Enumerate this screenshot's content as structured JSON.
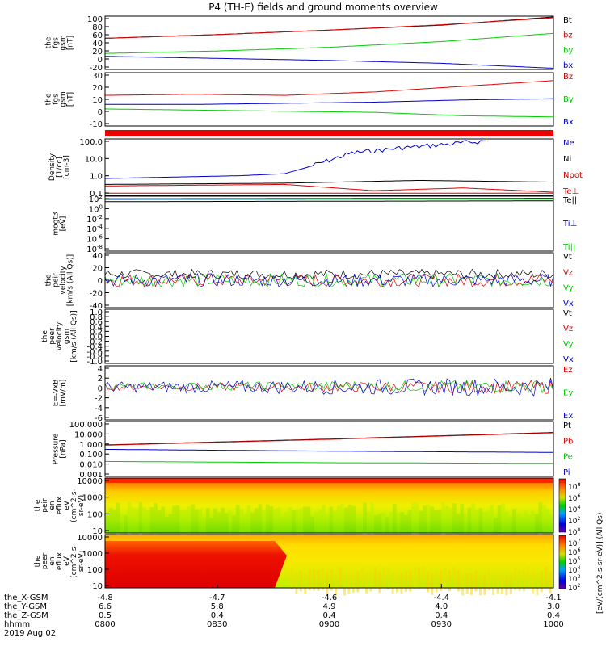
{
  "title": "P4 (TH-E) fields and ground moments overview",
  "colors": {
    "black": "#000000",
    "red": "#dd0000",
    "green": "#00cc00",
    "blue": "#0000cc"
  },
  "footer": {
    "row_labels": [
      "the_X-GSM",
      "the_Y-GSM",
      "the_Z-GSM",
      "hhmm",
      "2019 Aug 02"
    ],
    "columns": [
      {
        "x": "-4.8",
        "y": "6.6",
        "z": "0.5",
        "hhmm": "0800"
      },
      {
        "x": "-4.7",
        "y": "5.8",
        "z": "0.4",
        "hhmm": "0830"
      },
      {
        "x": "-4.6",
        "y": "4.9",
        "z": "0.4",
        "hhmm": "0900"
      },
      {
        "x": "-4.4",
        "y": "4.0",
        "z": "0.4",
        "hhmm": "0930"
      },
      {
        "x": "-4.1",
        "y": "3.0",
        "z": "0.4",
        "hhmm": "1000"
      }
    ]
  },
  "colorbar": {
    "label": "[eV/(cm^2-s-sr-eV)] (All Qs)",
    "ticks_top": [
      "10^8",
      "10^6",
      "10^4",
      "10^2",
      "10^0"
    ],
    "ticks_bottom": [
      "10^7",
      "10^6",
      "10^5",
      "10^4",
      "10^3",
      "10^2"
    ]
  },
  "chart_data": [
    {
      "type": "line",
      "ylabel_lines": [
        "the",
        "fgs",
        "gsm",
        "[nT]"
      ],
      "yticks": [
        "100",
        "80",
        "60",
        "40",
        "20",
        "0",
        "-20"
      ],
      "ylim": [
        -30,
        100
      ],
      "series": [
        {
          "name": "Bt",
          "color": "black",
          "x": [
            0,
            0.25,
            0.5,
            0.75,
            1
          ],
          "y": [
            46,
            55,
            66,
            78,
            98
          ]
        },
        {
          "name": "bz",
          "color": "red",
          "x": [
            0,
            0.25,
            0.5,
            0.75,
            1
          ],
          "y": [
            46,
            55,
            66,
            79,
            96
          ]
        },
        {
          "name": "by",
          "color": "green",
          "x": [
            0,
            0.25,
            0.5,
            0.75,
            1
          ],
          "y": [
            9,
            15,
            24,
            38,
            58
          ]
        },
        {
          "name": "bx",
          "color": "blue",
          "x": [
            0,
            0.25,
            0.5,
            0.75,
            1
          ],
          "y": [
            2,
            -3,
            -8,
            -15,
            -27
          ]
        }
      ]
    },
    {
      "type": "line",
      "ylabel_lines": [
        "the",
        "fgs",
        "gsm",
        "[nT]"
      ],
      "yticks": [
        "30",
        "20",
        "10",
        "0",
        "-10"
      ],
      "ylim": [
        -17,
        30
      ],
      "series": [
        {
          "name": "Bz",
          "color": "red",
          "x": [
            0,
            0.2,
            0.4,
            0.6,
            0.8,
            1
          ],
          "y": [
            10,
            11,
            10,
            13,
            18,
            23
          ]
        },
        {
          "name": "By",
          "color": "green",
          "x": [
            0,
            0.2,
            0.4,
            0.6,
            0.8,
            1
          ],
          "y": [
            -2,
            -3,
            -4,
            -5,
            -8,
            -9
          ]
        },
        {
          "name": "Bx",
          "color": "blue",
          "x": [
            0,
            0.2,
            0.4,
            0.6,
            0.8,
            1
          ],
          "y": [
            2,
            2,
            3,
            4,
            6,
            7
          ]
        }
      ]
    },
    {
      "type": "line",
      "ylabel_lines": [
        "Density",
        "[1/cc]",
        "[cm-3]"
      ],
      "yticks": [
        "100.0",
        "10.0",
        "1.0",
        "0.1"
      ],
      "ylim": [
        0.05,
        200
      ],
      "log": true,
      "series": [
        {
          "name": "Ne",
          "color": "blue",
          "x": [
            0,
            0.3,
            0.4,
            0.45,
            0.55,
            0.65,
            0.78,
            0.85
          ],
          "y": [
            0.6,
            0.9,
            1.2,
            3.0,
            25,
            50,
            100,
            150
          ]
        },
        {
          "name": "Ni",
          "color": "black",
          "x": [
            0,
            0.4,
            0.7,
            1
          ],
          "y": [
            0.25,
            0.3,
            0.45,
            0.35
          ]
        },
        {
          "name": "Npot",
          "color": "red",
          "x": [
            0,
            0.4,
            0.6,
            0.8,
            1
          ],
          "y": [
            0.2,
            0.25,
            0.1,
            0.15,
            0.08
          ]
        },
        {
          "name": "Te⊥",
          "color": "red",
          "x": [
            0,
            1
          ],
          "y": [
            0.07,
            0.07
          ]
        }
      ]
    },
    {
      "type": "line",
      "ylabel_lines": [
        "mogt3",
        "[eV]"
      ],
      "yticks": [
        "10^2",
        "10^0",
        "10^-2",
        "10^-4",
        "10^-6",
        "10^-8"
      ],
      "ylim": [
        -10,
        3
      ],
      "series": [
        {
          "name": "Te||",
          "color": "black",
          "x": [
            0,
            1
          ],
          "y": [
            1.7,
            1.9
          ]
        },
        {
          "name": "Ti⊥",
          "color": "blue",
          "x": [
            0,
            1
          ],
          "y": [
            2.4,
            2.5
          ]
        },
        {
          "name": "Ti||",
          "color": "green",
          "x": [
            0,
            1
          ],
          "y": [
            2.2,
            2.3
          ]
        }
      ],
      "legend": [
        "Te||",
        "Ti⊥",
        "Ti||"
      ]
    },
    {
      "type": "line",
      "ylabel_lines": [
        "the",
        "peir",
        "velocity",
        "[km/s (All Qs)]"
      ],
      "yticks": [
        "40",
        "20",
        "0",
        "-20",
        "-40"
      ],
      "ylim": [
        -45,
        45
      ],
      "series": [
        {
          "name": "Vt",
          "color": "black",
          "x": [
            0,
            1
          ],
          "y": [
            10,
            10
          ]
        },
        {
          "name": "Vz",
          "color": "red",
          "x": [
            0,
            1
          ],
          "y": [
            0,
            0
          ]
        },
        {
          "name": "Vy",
          "color": "green",
          "x": [
            0,
            1
          ],
          "y": [
            0,
            0
          ]
        },
        {
          "name": "Vx",
          "color": "blue",
          "x": [
            0,
            1
          ],
          "y": [
            0,
            0
          ]
        }
      ]
    },
    {
      "type": "line",
      "ylabel_lines": [
        "the",
        "peer",
        "velocity",
        "gsm",
        "[km/s (All Qs)]"
      ],
      "yticks": [
        "1.0",
        "0.8",
        "0.6",
        "0.4",
        "0.2",
        "0.0",
        "-0.2",
        "-0.4",
        "-0.6",
        "-0.8",
        "-1.0"
      ],
      "ylim": [
        -1,
        1
      ],
      "series": [],
      "legend": [
        "Vt",
        "Vz",
        "Vy",
        "Vx"
      ]
    },
    {
      "type": "line",
      "ylabel_lines": [
        "E=-VxB",
        "[mV/m]"
      ],
      "yticks": [
        "4",
        "2",
        "0",
        "-2",
        "-4",
        "-6"
      ],
      "ylim": [
        -7,
        4.5
      ],
      "series": [
        {
          "name": "Ez",
          "color": "red",
          "x": [
            0,
            1
          ],
          "y": [
            0,
            0
          ]
        },
        {
          "name": "Ey",
          "color": "green",
          "x": [
            0,
            1
          ],
          "y": [
            0.2,
            0.2
          ]
        },
        {
          "name": "Ex",
          "color": "blue",
          "x": [
            0,
            1
          ],
          "y": [
            0,
            0
          ]
        }
      ]
    },
    {
      "type": "line",
      "ylabel_lines": [
        "Pressure",
        "[nPa]"
      ],
      "yticks": [
        "100.000",
        "10.000",
        "1.000",
        "0.100",
        "0.010",
        "0.001"
      ],
      "ylim": [
        0.0007,
        150
      ],
      "log": true,
      "series": [
        {
          "name": "Pt",
          "color": "black",
          "x": [
            0,
            0.5,
            1
          ],
          "y": [
            0.8,
            3,
            13
          ]
        },
        {
          "name": "Pb",
          "color": "red",
          "x": [
            0,
            0.5,
            1
          ],
          "y": [
            0.75,
            2.8,
            12
          ]
        },
        {
          "name": "Pe",
          "color": "green",
          "x": [
            0,
            0.5,
            1
          ],
          "y": [
            0.02,
            0.015,
            0.013
          ]
        },
        {
          "name": "Pi",
          "color": "blue",
          "x": [
            0,
            0.5,
            1
          ],
          "y": [
            0.3,
            0.2,
            0.15
          ]
        }
      ]
    },
    {
      "type": "heatmap",
      "ylabel_lines": [
        "the",
        "peir",
        "en",
        "eflux",
        "eV",
        "(cm^2-s-",
        "sr-eV)"
      ],
      "yticks": [
        "10000",
        "1000",
        "100",
        "10"
      ],
      "ylim": [
        5,
        20000
      ],
      "log": true
    },
    {
      "type": "heatmap",
      "ylabel_lines": [
        "the",
        "peer",
        "en",
        "eflux",
        "eV",
        "(cm^2-s-",
        "sr-eV)"
      ],
      "yticks": [
        "10000",
        "1000",
        "100",
        "10"
      ],
      "ylim": [
        5,
        20000
      ],
      "log": true
    }
  ]
}
